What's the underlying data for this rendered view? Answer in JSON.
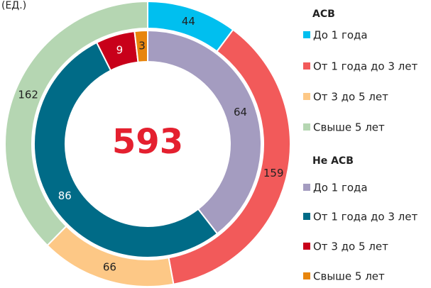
{
  "chart_data": {
    "type": "donut",
    "title": "(ЕД.)",
    "total": 593,
    "series": [
      {
        "name": "АСВ",
        "categories": [
          "До 1 года",
          "От 1 года до 3 лет",
          "От 3 до 5 лет",
          "Свыше 5 лет"
        ],
        "colors": [
          "#00bfef",
          "#f25a5a",
          "#fdc886",
          "#b5d6b2"
        ],
        "values": [
          44,
          159,
          66,
          162
        ]
      },
      {
        "name": "Не АСВ",
        "categories": [
          "До 1 года",
          "От 1 года до 3 лет",
          "От 3 до 5 лет",
          "Свыше 5 лет"
        ],
        "colors": [
          "#a49cc0",
          "#006b87",
          "#c8001a",
          "#e8850c"
        ],
        "values": [
          64,
          86,
          9,
          3
        ]
      }
    ]
  }
}
